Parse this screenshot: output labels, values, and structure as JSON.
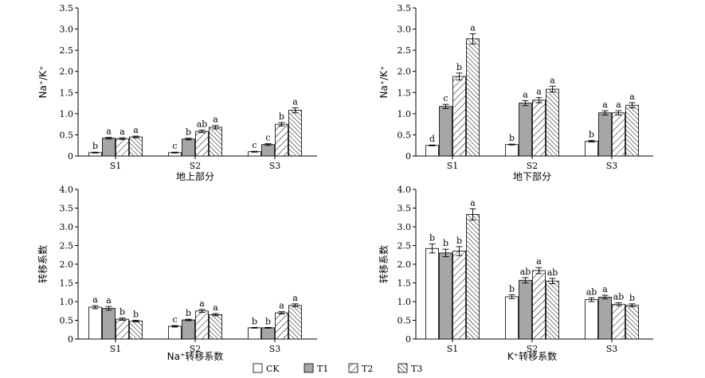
{
  "chart_data": [
    {
      "type": "bar",
      "panel": "top-left",
      "ylabel": "Na⁺/K⁺",
      "xlabel": "地上部分",
      "ylim": [
        0,
        3.5
      ],
      "yticks": [
        "0",
        "0.5",
        "1.0",
        "1.5",
        "2.0",
        "2.5",
        "3.0",
        "3.5"
      ],
      "categories": [
        "S1",
        "S2",
        "S3"
      ],
      "series": [
        {
          "name": "CK",
          "values": [
            0.08,
            0.08,
            0.1
          ],
          "errors": [
            0.01,
            0.01,
            0.01
          ],
          "letters": [
            "b",
            "c",
            "c"
          ]
        },
        {
          "name": "T1",
          "values": [
            0.42,
            0.4,
            0.27
          ],
          "errors": [
            0.02,
            0.02,
            0.02
          ],
          "letters": [
            "a",
            "b",
            "c"
          ]
        },
        {
          "name": "T2",
          "values": [
            0.41,
            0.58,
            0.75
          ],
          "errors": [
            0.02,
            0.03,
            0.04
          ],
          "letters": [
            "a",
            "ab",
            "b"
          ]
        },
        {
          "name": "T3",
          "values": [
            0.45,
            0.68,
            1.08
          ],
          "errors": [
            0.02,
            0.04,
            0.06
          ],
          "letters": [
            "a",
            "a",
            "a"
          ]
        }
      ]
    },
    {
      "type": "bar",
      "panel": "top-right",
      "ylabel": "Na⁺/K⁺",
      "xlabel": "地下部分",
      "ylim": [
        0,
        3.5
      ],
      "yticks": [
        "0",
        "0.5",
        "1.0",
        "1.5",
        "2.0",
        "2.5",
        "3.0",
        "3.5"
      ],
      "categories": [
        "S1",
        "S2",
        "S3"
      ],
      "series": [
        {
          "name": "CK",
          "values": [
            0.25,
            0.27,
            0.35
          ],
          "errors": [
            0.01,
            0.01,
            0.02
          ],
          "letters": [
            "d",
            "b",
            "b"
          ]
        },
        {
          "name": "T1",
          "values": [
            1.17,
            1.25,
            1.02
          ],
          "errors": [
            0.05,
            0.06,
            0.05
          ],
          "letters": [
            "c",
            "a",
            "a"
          ]
        },
        {
          "name": "T2",
          "values": [
            1.88,
            1.32,
            1.02
          ],
          "errors": [
            0.08,
            0.06,
            0.05
          ],
          "letters": [
            "b",
            "a",
            "a"
          ]
        },
        {
          "name": "T3",
          "values": [
            2.77,
            1.58,
            1.2
          ],
          "errors": [
            0.12,
            0.07,
            0.06
          ],
          "letters": [
            "a",
            "a",
            "a"
          ]
        }
      ]
    },
    {
      "type": "bar",
      "panel": "bottom-left",
      "ylabel": "转移系数",
      "xlabel": "Na⁺转移系数",
      "ylim": [
        0,
        4.0
      ],
      "yticks": [
        "0",
        "0.5",
        "1.0",
        "1.5",
        "2.0",
        "2.5",
        "3.0",
        "3.5",
        "4.0"
      ],
      "categories": [
        "S1",
        "S2",
        "S3"
      ],
      "series": [
        {
          "name": "CK",
          "values": [
            0.85,
            0.34,
            0.3
          ],
          "errors": [
            0.04,
            0.02,
            0.01
          ],
          "letters": [
            "a",
            "c",
            "b"
          ]
        },
        {
          "name": "T1",
          "values": [
            0.82,
            0.51,
            0.3
          ],
          "errors": [
            0.05,
            0.02,
            0.01
          ],
          "letters": [
            "a",
            "b",
            "b"
          ]
        },
        {
          "name": "T2",
          "values": [
            0.53,
            0.75,
            0.7
          ],
          "errors": [
            0.03,
            0.04,
            0.03
          ],
          "letters": [
            "b",
            "a",
            "a"
          ]
        },
        {
          "name": "T3",
          "values": [
            0.48,
            0.65,
            0.9
          ],
          "errors": [
            0.02,
            0.03,
            0.04
          ],
          "letters": [
            "b",
            "a",
            "a"
          ]
        }
      ]
    },
    {
      "type": "bar",
      "panel": "bottom-right",
      "ylabel": "转移系数",
      "xlabel": "K⁺转移系数",
      "ylim": [
        0,
        4.0
      ],
      "yticks": [
        "0",
        "0.5",
        "1.0",
        "1.5",
        "2.0",
        "2.5",
        "3.0",
        "3.5",
        "4.0"
      ],
      "categories": [
        "S1",
        "S2",
        "S3"
      ],
      "series": [
        {
          "name": "CK",
          "values": [
            2.42,
            1.13,
            1.05
          ],
          "errors": [
            0.12,
            0.05,
            0.05
          ],
          "letters": [
            "b",
            "b",
            "ab"
          ]
        },
        {
          "name": "T1",
          "values": [
            2.3,
            1.57,
            1.12
          ],
          "errors": [
            0.1,
            0.07,
            0.05
          ],
          "letters": [
            "b",
            "ab",
            "a"
          ]
        },
        {
          "name": "T2",
          "values": [
            2.35,
            1.83,
            0.93
          ],
          "errors": [
            0.12,
            0.08,
            0.04
          ],
          "letters": [
            "b",
            "a",
            "ab"
          ]
        },
        {
          "name": "T3",
          "values": [
            3.33,
            1.55,
            0.9
          ],
          "errors": [
            0.15,
            0.07,
            0.04
          ],
          "letters": [
            "a",
            "ab",
            "b"
          ]
        }
      ]
    }
  ],
  "legend": {
    "placement": "bottom-center",
    "items": [
      {
        "label": "CK",
        "pattern": "white"
      },
      {
        "label": "T1",
        "pattern": "gray"
      },
      {
        "label": "T2",
        "pattern": "hatch-sparse"
      },
      {
        "label": "T3",
        "pattern": "hatch-dense"
      }
    ]
  },
  "colors": {
    "gray_fill": "#a6a6a6",
    "axis": "#000000",
    "hatch": "#000000"
  }
}
